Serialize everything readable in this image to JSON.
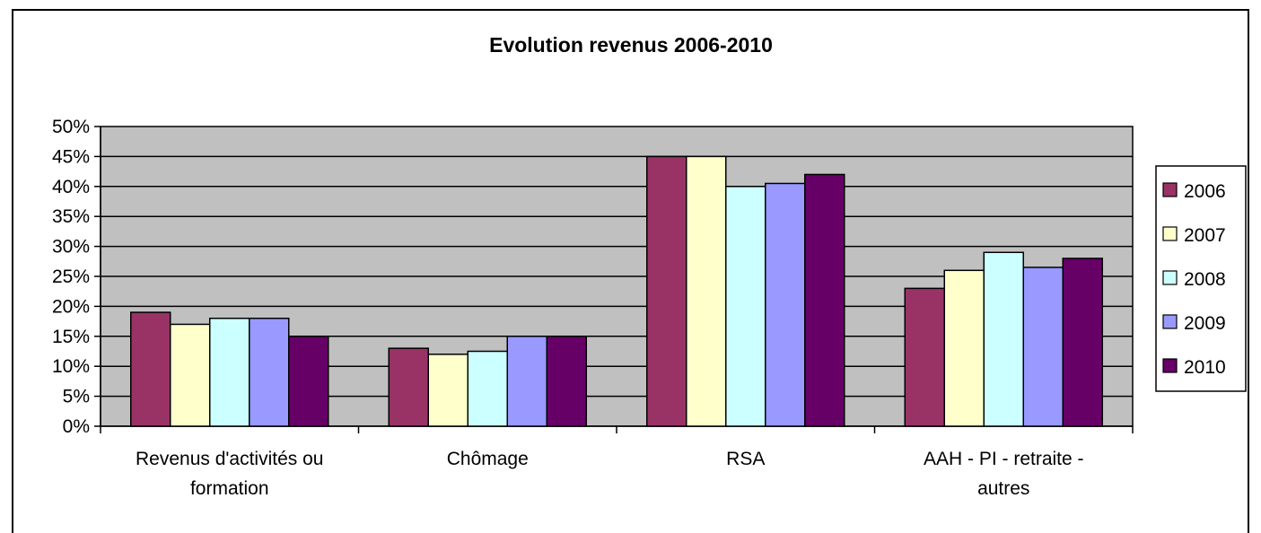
{
  "chart_data": {
    "type": "bar",
    "title": "Evolution revenus 2006-2010",
    "xlabel": "",
    "ylabel": "",
    "ylim": [
      0,
      0.5
    ],
    "yticks": [
      0,
      0.05,
      0.1,
      0.15,
      0.2,
      0.25,
      0.3,
      0.35,
      0.4,
      0.45,
      0.5
    ],
    "ytick_labels": [
      "0%",
      "5%",
      "10%",
      "15%",
      "20%",
      "25%",
      "30%",
      "35%",
      "40%",
      "45%",
      "50%"
    ],
    "grid": true,
    "legend": "right",
    "categories": [
      [
        "Revenus d'activités ou",
        "formation"
      ],
      [
        "Chômage"
      ],
      [
        "RSA"
      ],
      [
        "AAH - PI - retraite -",
        "autres"
      ]
    ],
    "series": [
      {
        "name": "2006",
        "color": "#993366",
        "values": [
          0.19,
          0.13,
          0.45,
          0.23
        ]
      },
      {
        "name": "2007",
        "color": "#FFFFCC",
        "values": [
          0.17,
          0.12,
          0.45,
          0.26
        ]
      },
      {
        "name": "2008",
        "color": "#CCFFFF",
        "values": [
          0.18,
          0.125,
          0.4,
          0.29
        ]
      },
      {
        "name": "2009",
        "color": "#9999FF",
        "values": [
          0.18,
          0.15,
          0.405,
          0.265
        ]
      },
      {
        "name": "2010",
        "color": "#660066",
        "values": [
          0.15,
          0.15,
          0.42,
          0.28
        ]
      }
    ],
    "plot_background": "#C0C0C0"
  }
}
